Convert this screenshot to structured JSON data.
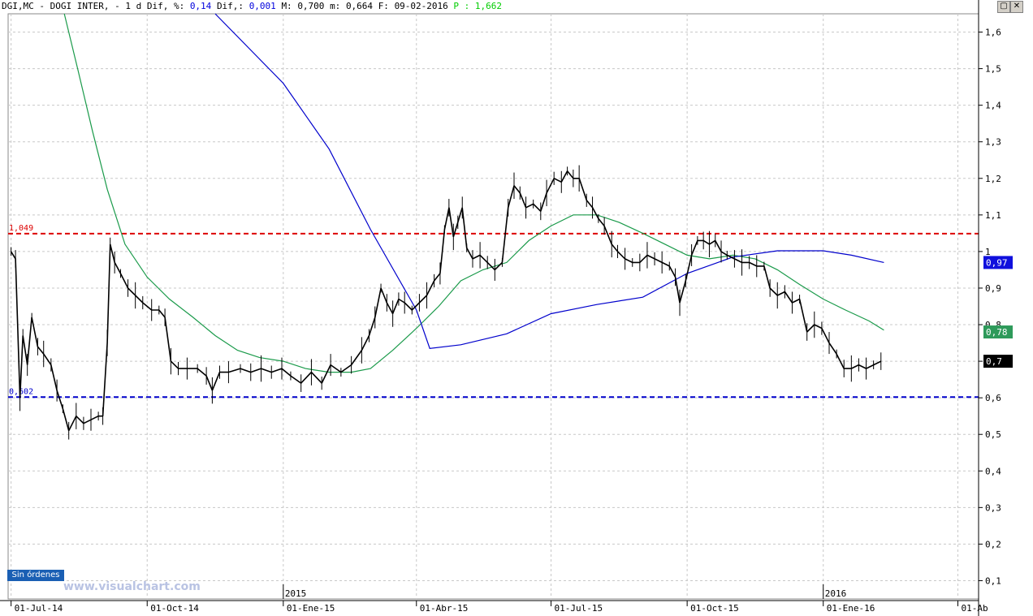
{
  "header": {
    "symbol": "DGI,MC - DOGI INTER, -",
    "period": "1 d",
    "dif_label": "Dif, %:",
    "dif_pct": "0,14",
    "dif2_label": "Dif,:",
    "dif_abs": "0,001",
    "max_label": "M:",
    "max": "0,700",
    "min_label": "m:",
    "min": "0,664",
    "date_label": "F:",
    "date": "09-02-2016",
    "p_label": "P :",
    "p_value": "1,662"
  },
  "window_buttons": {
    "restore": "▢",
    "close": "✕"
  },
  "sin_ordenes_label": "Sin órdenes",
  "watermark": "www.visualchart.com",
  "colors": {
    "price": "#000000",
    "ma_green": "#1a9a4a",
    "ma_blue": "#0000cc",
    "resistance": "#dd0000",
    "support": "#0000cc",
    "grid": "#c8c8c8"
  },
  "chart_data": {
    "type": "line",
    "y_axis": {
      "ticks": [
        "1,6",
        "1,5",
        "1,4",
        "1,3",
        "1,2",
        "1,1",
        "1",
        "0,9",
        "0,8",
        "0,7",
        "0,6",
        "0,5",
        "0,4",
        "0,3",
        "0,2",
        "0,1"
      ],
      "tick_values": [
        1.6,
        1.5,
        1.4,
        1.3,
        1.2,
        1.1,
        1.0,
        0.9,
        0.8,
        0.7,
        0.6,
        0.5,
        0.4,
        0.3,
        0.2,
        0.1
      ],
      "position": "right"
    },
    "x_axis": {
      "labels": [
        "01-Jul-14",
        "01-Oct-14",
        "01-Ene-15",
        "01-Abr-15",
        "01-Jul-15",
        "01-Oct-15",
        "01-Ene-16",
        "01-Ab"
      ],
      "label_dates": [
        "2014-07-01",
        "2014-10-01",
        "2015-01-01",
        "2015-04-01",
        "2015-07-01",
        "2015-10-01",
        "2016-01-01",
        "2016-04-01"
      ],
      "year_labels": [
        {
          "text": "2015",
          "date": "2015-01-01"
        },
        {
          "text": "2016",
          "date": "2016-01-01"
        }
      ],
      "range": [
        "2014-06-29",
        "2016-04-15"
      ]
    },
    "horizontal_lines": [
      {
        "label": "1,049",
        "value": 1.049,
        "style": "dashed",
        "color": "#dd0000"
      },
      {
        "label": "0,602",
        "value": 0.602,
        "style": "dashed",
        "color": "#0000cc"
      }
    ],
    "price_badges": [
      {
        "label": "0,97",
        "value": 0.97,
        "bg": "#1010dd",
        "fg": "#ffffff"
      },
      {
        "label": "0,78",
        "value": 0.78,
        "bg": "#2e9a5a",
        "fg": "#ffffff"
      },
      {
        "label": "0,7",
        "value": 0.7,
        "bg": "#000000",
        "fg": "#ffffff"
      }
    ],
    "series": [
      {
        "key": "price",
        "style": "bars",
        "points": [
          [
            "2014-07-01",
            1.0
          ],
          [
            "2014-07-04",
            0.98
          ],
          [
            "2014-07-07",
            0.6
          ],
          [
            "2014-07-09",
            0.77
          ],
          [
            "2014-07-12",
            0.69
          ],
          [
            "2014-07-15",
            0.82
          ],
          [
            "2014-07-19",
            0.74
          ],
          [
            "2014-07-23",
            0.72
          ],
          [
            "2014-07-28",
            0.69
          ],
          [
            "2014-08-01",
            0.62
          ],
          [
            "2014-08-05",
            0.57
          ],
          [
            "2014-08-09",
            0.51
          ],
          [
            "2014-08-14",
            0.55
          ],
          [
            "2014-08-19",
            0.53
          ],
          [
            "2014-08-24",
            0.54
          ],
          [
            "2014-08-29",
            0.55
          ],
          [
            "2014-09-01",
            0.55
          ],
          [
            "2014-09-04",
            0.75
          ],
          [
            "2014-09-06",
            1.02
          ],
          [
            "2014-09-09",
            0.97
          ],
          [
            "2014-09-13",
            0.94
          ],
          [
            "2014-09-18",
            0.9
          ],
          [
            "2014-09-23",
            0.88
          ],
          [
            "2014-09-28",
            0.86
          ],
          [
            "2014-10-04",
            0.84
          ],
          [
            "2014-10-09",
            0.84
          ],
          [
            "2014-10-13",
            0.82
          ],
          [
            "2014-10-17",
            0.7
          ],
          [
            "2014-10-22",
            0.68
          ],
          [
            "2014-10-28",
            0.68
          ],
          [
            "2014-11-04",
            0.68
          ],
          [
            "2014-11-10",
            0.66
          ],
          [
            "2014-11-14",
            0.62
          ],
          [
            "2014-11-19",
            0.67
          ],
          [
            "2014-11-25",
            0.67
          ],
          [
            "2014-12-03",
            0.68
          ],
          [
            "2014-12-10",
            0.67
          ],
          [
            "2014-12-17",
            0.68
          ],
          [
            "2014-12-24",
            0.67
          ],
          [
            "2014-12-31",
            0.68
          ],
          [
            "2015-01-06",
            0.66
          ],
          [
            "2015-01-13",
            0.64
          ],
          [
            "2015-01-20",
            0.67
          ],
          [
            "2015-01-27",
            0.64
          ],
          [
            "2015-02-02",
            0.69
          ],
          [
            "2015-02-09",
            0.67
          ],
          [
            "2015-02-16",
            0.69
          ],
          [
            "2015-02-23",
            0.73
          ],
          [
            "2015-02-28",
            0.77
          ],
          [
            "2015-03-04",
            0.82
          ],
          [
            "2015-03-08",
            0.9
          ],
          [
            "2015-03-12",
            0.86
          ],
          [
            "2015-03-16",
            0.83
          ],
          [
            "2015-03-20",
            0.87
          ],
          [
            "2015-03-24",
            0.86
          ],
          [
            "2015-03-29",
            0.84
          ],
          [
            "2015-04-03",
            0.86
          ],
          [
            "2015-04-08",
            0.88
          ],
          [
            "2015-04-13",
            0.92
          ],
          [
            "2015-04-17",
            0.94
          ],
          [
            "2015-04-20",
            1.06
          ],
          [
            "2015-04-23",
            1.12
          ],
          [
            "2015-04-26",
            1.04
          ],
          [
            "2015-04-29",
            1.08
          ],
          [
            "2015-05-02",
            1.12
          ],
          [
            "2015-05-05",
            1.01
          ],
          [
            "2015-05-09",
            0.98
          ],
          [
            "2015-05-14",
            0.99
          ],
          [
            "2015-05-19",
            0.97
          ],
          [
            "2015-05-24",
            0.95
          ],
          [
            "2015-05-29",
            0.97
          ],
          [
            "2015-06-02",
            1.12
          ],
          [
            "2015-06-06",
            1.18
          ],
          [
            "2015-06-10",
            1.16
          ],
          [
            "2015-06-14",
            1.12
          ],
          [
            "2015-06-19",
            1.13
          ],
          [
            "2015-06-24",
            1.11
          ],
          [
            "2015-06-28",
            1.16
          ],
          [
            "2015-07-03",
            1.2
          ],
          [
            "2015-07-08",
            1.19
          ],
          [
            "2015-07-12",
            1.22
          ],
          [
            "2015-07-16",
            1.2
          ],
          [
            "2015-07-20",
            1.2
          ],
          [
            "2015-07-25",
            1.14
          ],
          [
            "2015-07-29",
            1.12
          ],
          [
            "2015-08-02",
            1.09
          ],
          [
            "2015-08-06",
            1.07
          ],
          [
            "2015-08-11",
            1.02
          ],
          [
            "2015-08-15",
            1.0
          ],
          [
            "2015-08-20",
            0.98
          ],
          [
            "2015-08-25",
            0.97
          ],
          [
            "2015-08-30",
            0.97
          ],
          [
            "2015-09-04",
            0.99
          ],
          [
            "2015-09-09",
            0.98
          ],
          [
            "2015-09-14",
            0.97
          ],
          [
            "2015-09-19",
            0.96
          ],
          [
            "2015-09-23",
            0.93
          ],
          [
            "2015-09-26",
            0.86
          ],
          [
            "2015-09-30",
            0.92
          ],
          [
            "2015-10-04",
            0.99
          ],
          [
            "2015-10-08",
            1.03
          ],
          [
            "2015-10-12",
            1.03
          ],
          [
            "2015-10-16",
            1.02
          ],
          [
            "2015-10-20",
            1.03
          ],
          [
            "2015-10-24",
            1.0
          ],
          [
            "2015-10-28",
            0.99
          ],
          [
            "2015-11-02",
            0.98
          ],
          [
            "2015-11-07",
            0.97
          ],
          [
            "2015-11-12",
            0.97
          ],
          [
            "2015-11-17",
            0.96
          ],
          [
            "2015-11-22",
            0.96
          ],
          [
            "2015-11-26",
            0.9
          ],
          [
            "2015-12-01",
            0.88
          ],
          [
            "2015-12-06",
            0.89
          ],
          [
            "2015-12-11",
            0.86
          ],
          [
            "2015-12-16",
            0.87
          ],
          [
            "2015-12-21",
            0.78
          ],
          [
            "2015-12-26",
            0.8
          ],
          [
            "2015-12-31",
            0.79
          ],
          [
            "2016-01-05",
            0.75
          ],
          [
            "2016-01-10",
            0.72
          ],
          [
            "2016-01-15",
            0.68
          ],
          [
            "2016-01-20",
            0.68
          ],
          [
            "2016-01-25",
            0.69
          ],
          [
            "2016-01-30",
            0.68
          ],
          [
            "2016-02-04",
            0.69
          ],
          [
            "2016-02-09",
            0.7
          ]
        ]
      },
      {
        "key": "ma_green",
        "style": "line",
        "points": [
          [
            "2014-08-06",
            1.65
          ],
          [
            "2014-08-15",
            1.5
          ],
          [
            "2014-08-25",
            1.33
          ],
          [
            "2014-09-04",
            1.17
          ],
          [
            "2014-09-16",
            1.02
          ],
          [
            "2014-10-01",
            0.93
          ],
          [
            "2014-10-16",
            0.87
          ],
          [
            "2014-11-01",
            0.82
          ],
          [
            "2014-11-16",
            0.77
          ],
          [
            "2014-12-01",
            0.73
          ],
          [
            "2014-12-16",
            0.71
          ],
          [
            "2015-01-01",
            0.7
          ],
          [
            "2015-01-16",
            0.68
          ],
          [
            "2015-02-01",
            0.67
          ],
          [
            "2015-02-16",
            0.67
          ],
          [
            "2015-03-01",
            0.68
          ],
          [
            "2015-03-16",
            0.73
          ],
          [
            "2015-04-01",
            0.79
          ],
          [
            "2015-04-16",
            0.85
          ],
          [
            "2015-05-01",
            0.92
          ],
          [
            "2015-05-16",
            0.95
          ],
          [
            "2015-06-01",
            0.97
          ],
          [
            "2015-06-16",
            1.03
          ],
          [
            "2015-07-01",
            1.07
          ],
          [
            "2015-07-16",
            1.1
          ],
          [
            "2015-08-01",
            1.1
          ],
          [
            "2015-08-16",
            1.08
          ],
          [
            "2015-09-01",
            1.05
          ],
          [
            "2015-09-16",
            1.02
          ],
          [
            "2015-10-01",
            0.99
          ],
          [
            "2015-10-16",
            0.98
          ],
          [
            "2015-11-01",
            0.99
          ],
          [
            "2015-11-16",
            0.98
          ],
          [
            "2015-12-01",
            0.95
          ],
          [
            "2015-12-16",
            0.91
          ],
          [
            "2016-01-01",
            0.87
          ],
          [
            "2016-01-16",
            0.84
          ],
          [
            "2016-02-01",
            0.81
          ],
          [
            "2016-02-11",
            0.785
          ]
        ]
      },
      {
        "key": "ma_blue",
        "style": "line",
        "points": [
          [
            "2014-11-16",
            1.65
          ],
          [
            "2015-01-01",
            1.46
          ],
          [
            "2015-02-01",
            1.28
          ],
          [
            "2015-03-01",
            1.06
          ],
          [
            "2015-04-01",
            0.84
          ],
          [
            "2015-04-10",
            0.735
          ],
          [
            "2015-05-01",
            0.745
          ],
          [
            "2015-06-01",
            0.775
          ],
          [
            "2015-07-01",
            0.83
          ],
          [
            "2015-08-01",
            0.855
          ],
          [
            "2015-09-01",
            0.875
          ],
          [
            "2015-10-01",
            0.94
          ],
          [
            "2015-11-01",
            0.985
          ],
          [
            "2015-12-01",
            1.002
          ],
          [
            "2016-01-01",
            1.002
          ],
          [
            "2016-01-20",
            0.99
          ],
          [
            "2016-02-11",
            0.97
          ]
        ]
      }
    ]
  }
}
